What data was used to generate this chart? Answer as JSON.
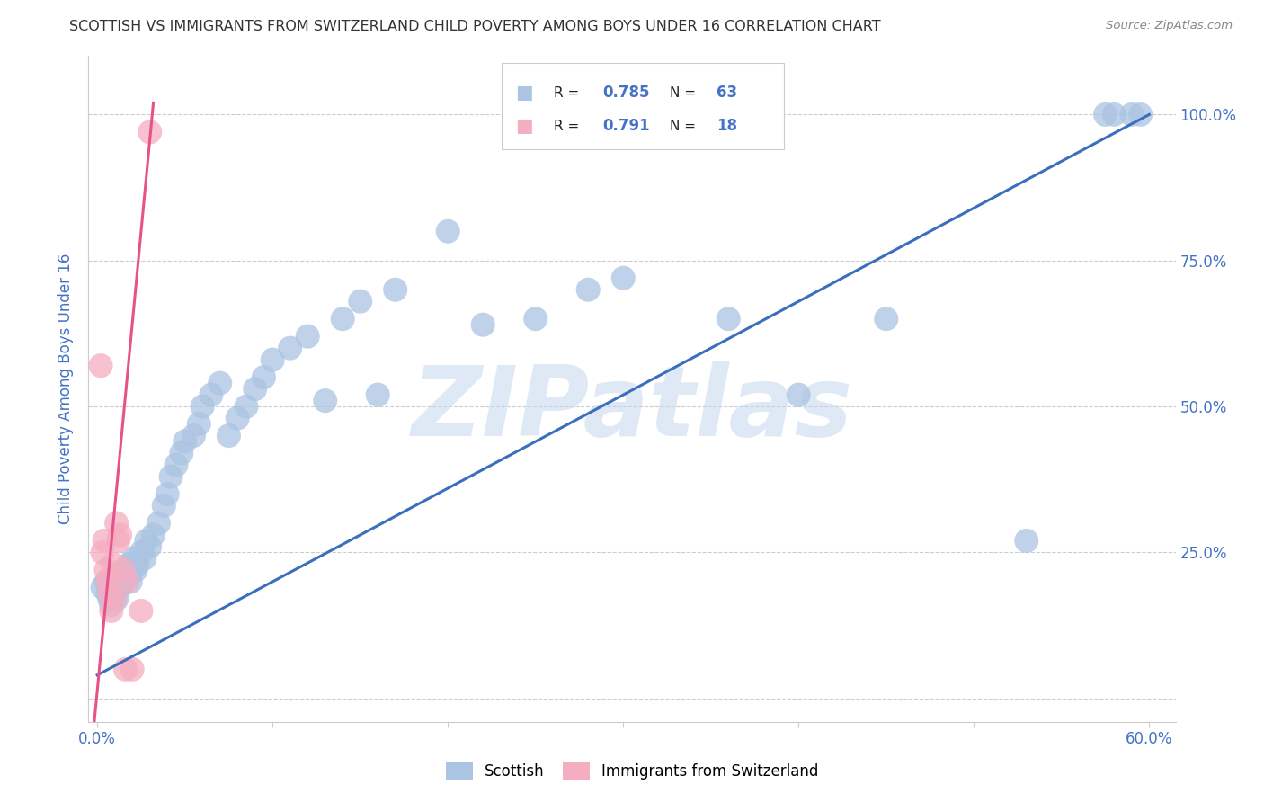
{
  "title": "SCOTTISH VS IMMIGRANTS FROM SWITZERLAND CHILD POVERTY AMONG BOYS UNDER 16 CORRELATION CHART",
  "source": "Source: ZipAtlas.com",
  "ylabel": "Child Poverty Among Boys Under 16",
  "xlim": [
    -0.005,
    0.615
  ],
  "ylim": [
    -0.04,
    1.1
  ],
  "xticks": [
    0.0,
    0.1,
    0.2,
    0.3,
    0.4,
    0.5,
    0.6
  ],
  "xticklabels": [
    "0.0%",
    "",
    "",
    "",
    "",
    "",
    "60.0%"
  ],
  "yticks": [
    0.0,
    0.25,
    0.5,
    0.75,
    1.0
  ],
  "yticklabels": [
    "",
    "25.0%",
    "50.0%",
    "75.0%",
    "100.0%"
  ],
  "legend_label1": "Scottish",
  "legend_label2": "Immigrants from Switzerland",
  "watermark": "ZIPatlas",
  "blue_color": "#aac4e2",
  "pink_color": "#f5adc0",
  "blue_line_color": "#3a6fbd",
  "pink_line_color": "#e8528a",
  "title_color": "#333333",
  "axis_label_color": "#4472c4",
  "tick_color": "#4472c4",
  "legend_r1_val": "0.785",
  "legend_n1_val": "63",
  "legend_r2_val": "0.791",
  "legend_n2_val": "18",
  "blue_scatter_x": [
    0.003,
    0.005,
    0.006,
    0.007,
    0.008,
    0.009,
    0.01,
    0.011,
    0.012,
    0.013,
    0.014,
    0.015,
    0.016,
    0.017,
    0.018,
    0.019,
    0.02,
    0.021,
    0.022,
    0.023,
    0.025,
    0.027,
    0.028,
    0.03,
    0.032,
    0.035,
    0.038,
    0.04,
    0.042,
    0.045,
    0.048,
    0.05,
    0.055,
    0.058,
    0.06,
    0.065,
    0.07,
    0.075,
    0.08,
    0.085,
    0.09,
    0.095,
    0.1,
    0.11,
    0.12,
    0.13,
    0.14,
    0.15,
    0.16,
    0.17,
    0.2,
    0.22,
    0.25,
    0.28,
    0.3,
    0.36,
    0.4,
    0.45,
    0.53,
    0.575,
    0.58,
    0.59,
    0.595
  ],
  "blue_scatter_y": [
    0.19,
    0.2,
    0.18,
    0.17,
    0.16,
    0.18,
    0.19,
    0.17,
    0.2,
    0.19,
    0.21,
    0.2,
    0.22,
    0.21,
    0.23,
    0.2,
    0.22,
    0.24,
    0.22,
    0.23,
    0.25,
    0.24,
    0.27,
    0.26,
    0.28,
    0.3,
    0.33,
    0.35,
    0.38,
    0.4,
    0.42,
    0.44,
    0.45,
    0.47,
    0.5,
    0.52,
    0.54,
    0.45,
    0.48,
    0.5,
    0.53,
    0.55,
    0.58,
    0.6,
    0.62,
    0.51,
    0.65,
    0.68,
    0.52,
    0.7,
    0.8,
    0.64,
    0.65,
    0.7,
    0.72,
    0.65,
    0.52,
    0.65,
    0.27,
    1.0,
    1.0,
    1.0,
    1.0
  ],
  "pink_scatter_x": [
    0.002,
    0.003,
    0.004,
    0.005,
    0.006,
    0.007,
    0.008,
    0.009,
    0.01,
    0.011,
    0.012,
    0.013,
    0.015,
    0.016,
    0.017,
    0.02,
    0.025,
    0.03
  ],
  "pink_scatter_y": [
    0.57,
    0.25,
    0.27,
    0.22,
    0.2,
    0.18,
    0.15,
    0.23,
    0.17,
    0.3,
    0.27,
    0.28,
    0.22,
    0.05,
    0.2,
    0.05,
    0.15,
    0.97
  ],
  "blue_line_x": [
    0.0,
    0.6
  ],
  "blue_line_y": [
    0.04,
    1.0
  ],
  "pink_line_x": [
    -0.002,
    0.032
  ],
  "pink_line_y": [
    -0.05,
    1.02
  ]
}
